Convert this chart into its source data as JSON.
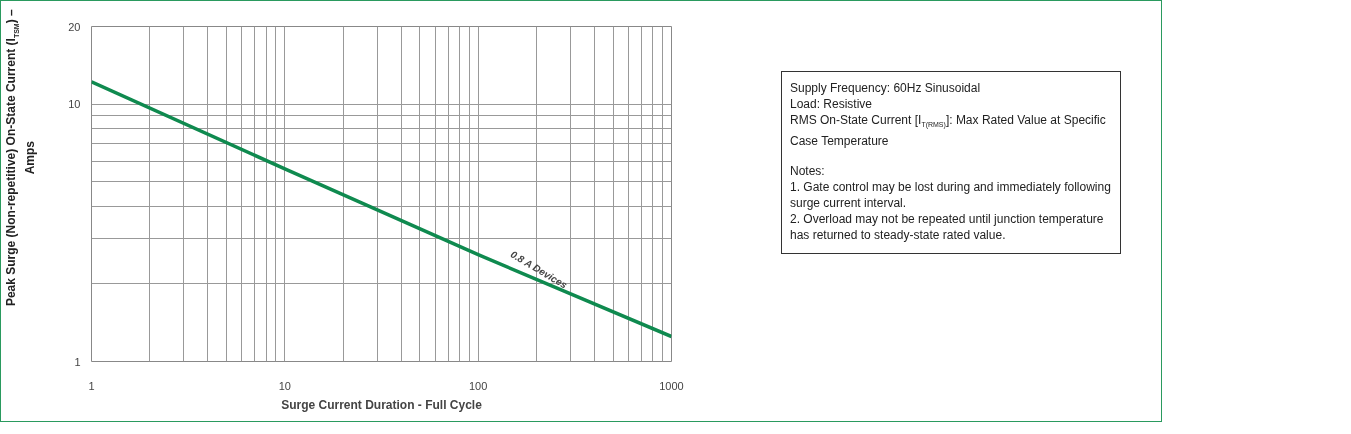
{
  "chart_data": {
    "type": "line",
    "xlabel": "Surge Current Duration - Full Cycle",
    "ylabel": "Peak Surge (Non-repetitive) On-State Current (I$_{TSM}$) – Amps",
    "x": [
      1,
      10,
      100,
      1000
    ],
    "series": [
      {
        "color": "#0f8a4f",
        "values": [
          12.2,
          5.6,
          2.6,
          1.25
        ]
      }
    ],
    "log": "xy",
    "xlim": [
      1,
      1000
    ],
    "ylim": [
      1,
      20
    ],
    "xticks": [
      1,
      {
        "value": 2,
        "label": null
      },
      {
        "value": 3,
        "label": null
      },
      {
        "value": 4,
        "label": null
      },
      {
        "value": 5,
        "label": null
      },
      {
        "value": 6,
        "label": null
      },
      {
        "value": 7,
        "label": null
      },
      {
        "value": 8,
        "label": null
      },
      {
        "value": 9,
        "label": null
      },
      10,
      {
        "value": 20,
        "label": null
      },
      {
        "value": 30,
        "label": null
      },
      {
        "value": 40,
        "label": null
      },
      {
        "value": 50,
        "label": null
      },
      {
        "value": 60,
        "label": null
      },
      {
        "value": 70,
        "label": null
      },
      {
        "value": 80,
        "label": null
      },
      {
        "value": 90,
        "label": null
      },
      100,
      {
        "value": 200,
        "label": null
      },
      {
        "value": 300,
        "label": null
      },
      {
        "value": 400,
        "label": null
      },
      {
        "value": 500,
        "label": null
      },
      {
        "value": 600,
        "label": null
      },
      {
        "value": 700,
        "label": null
      },
      {
        "value": 800,
        "label": null
      },
      {
        "value": 900,
        "label": null
      },
      1000
    ],
    "yticks": [
      1,
      {
        "value": 2,
        "label": null
      },
      {
        "value": 3,
        "label": null
      },
      {
        "value": 4,
        "label": null
      },
      {
        "value": 5,
        "label": null
      },
      {
        "value": 6,
        "label": null
      },
      {
        "value": 7,
        "label": null
      },
      {
        "value": 8,
        "label": null
      },
      {
        "value": 9,
        "label": null
      },
      10,
      20
    ],
    "grid": true,
    "annotations": [
      {
        "text": "0.8 A Devices",
        "x": 200,
        "y": 2.1
      },
      "Supply Frequency: 60Hz Sinusoidal",
      "Load: Resistive",
      "RMS On-State Current [I$_{T(RMS)}$]: Max Rated Value at Specific Case Temperature",
      "Notes:",
      "1. Gate control may be lost during and immediately following surge current interval.",
      "2. Overload may not be repeated until junction temperature has returned to steady-state rated value."
    ]
  }
}
